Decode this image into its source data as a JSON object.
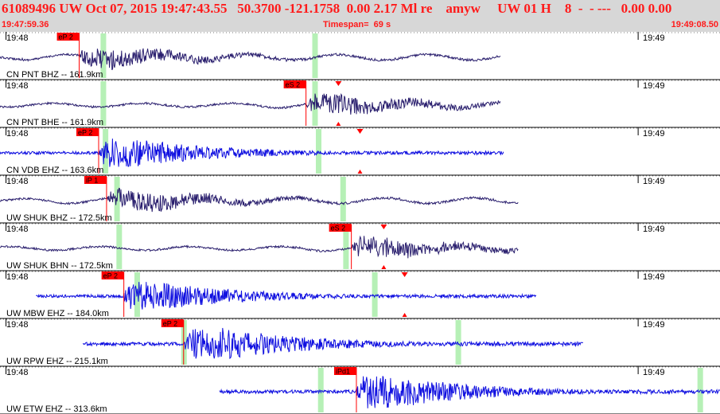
{
  "header": {
    "title": "61089496 UW Oct 07, 2015 19:47:43.55   50.3700 -121.1758  0.00 2.17 Ml re    amyw     UW 01 H    8  -  - ---   0.00 0.00",
    "start_time": "19:47:59.36",
    "timespan": "Timespan=  69 s",
    "end_time": "19:49:08.50"
  },
  "colors": {
    "header_bg": "#d7d7d7",
    "header_text": "#ff1a1a",
    "trace_dark": "#2a1f6e",
    "trace_blue": "#1010e0",
    "pick_red": "#ff0000",
    "window_green": "#b6f0b6"
  },
  "time_ticks": [
    "19:48",
    "19:49"
  ],
  "channels": [
    {
      "label": "CN PNT BHZ -- 161.9km",
      "color": "dark",
      "pick": "eP 2",
      "pick_time": 0.11,
      "marker": null,
      "start": 0.0,
      "end": 0.695,
      "windows": [
        0.143,
        0.437
      ],
      "amp": 0.35,
      "lowfreq": true
    },
    {
      "label": "CN PNT BHE -- 161.9km",
      "color": "dark",
      "pick": "eS 2",
      "pick_time": 0.425,
      "marker": 0.47,
      "start": 0.0,
      "end": 0.695,
      "windows": [
        0.143,
        0.437
      ],
      "amp": 0.35,
      "lowfreq": true
    },
    {
      "label": "CN VDB EHZ -- 163.6km",
      "color": "blue",
      "pick": "eP 2",
      "pick_time": 0.137,
      "marker": 0.5,
      "start": 0.0,
      "end": 0.7,
      "windows": [
        0.146,
        0.442
      ],
      "amp": 0.3,
      "lowfreq": false
    },
    {
      "label": "UW SHUK BHZ -- 172.5km",
      "color": "dark",
      "pick": "iP 1",
      "pick_time": 0.148,
      "marker": null,
      "start": 0.0,
      "end": 0.72,
      "windows": [
        0.162,
        0.476
      ],
      "amp": 0.35,
      "lowfreq": true
    },
    {
      "label": "UW SHUK BHN -- 172.5km",
      "color": "dark",
      "pick": "eS 2",
      "pick_time": 0.488,
      "marker": 0.533,
      "start": 0.0,
      "end": 0.72,
      "windows": [
        0.165,
        0.48
      ],
      "amp": 0.35,
      "lowfreq": true
    },
    {
      "label": "UW MBW EHZ -- 184.0km",
      "color": "blue",
      "pick": "eP 2",
      "pick_time": 0.172,
      "marker": 0.562,
      "start": 0.05,
      "end": 0.745,
      "windows": [
        0.19,
        0.52
      ],
      "amp": 0.3,
      "lowfreq": false
    },
    {
      "label": "UW RPW EHZ -- 215.1km",
      "color": "blue",
      "pick": "eP 2",
      "pick_time": 0.255,
      "marker": null,
      "start": 0.115,
      "end": 0.81,
      "windows": [
        0.255,
        0.636
      ],
      "amp": 0.35,
      "lowfreq": false
    },
    {
      "label": "UW ETW EHZ -- 313.6km",
      "color": "blue",
      "pick": "iPd1",
      "pick_time": 0.495,
      "marker": null,
      "start": 0.305,
      "end": 1.0,
      "windows": [
        0.445,
        0.972
      ],
      "amp": 0.35,
      "lowfreq": false
    }
  ]
}
